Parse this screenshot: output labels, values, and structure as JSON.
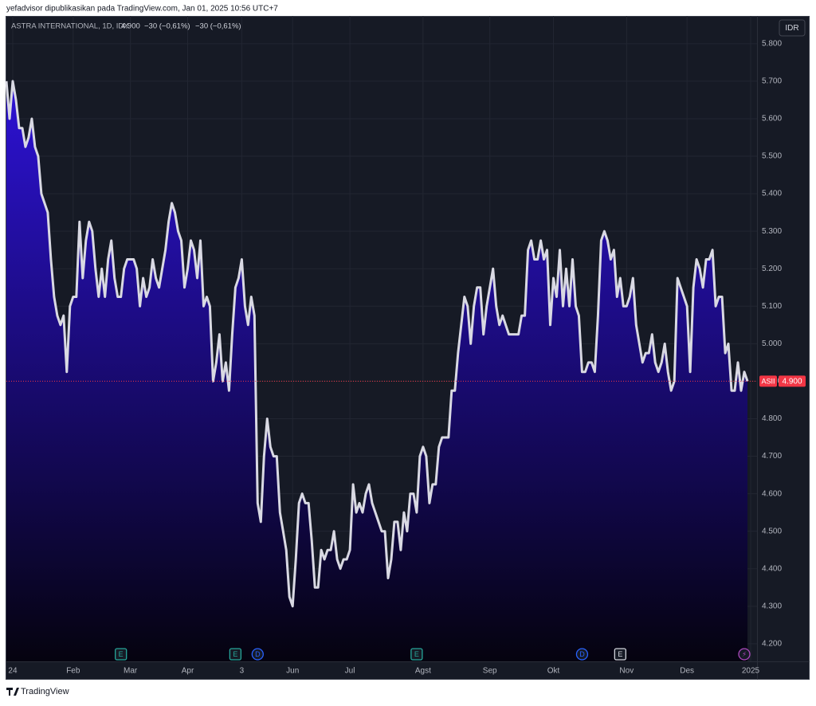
{
  "header": "yefadvisor dipublikasikan pada TradingView.com, Jan 01, 2025 10:56 UTC+7",
  "footer": "TradingView",
  "chart_data": {
    "type": "area",
    "title": "ASTRA INTERNATIONAL, 1D, IDX",
    "ohlc_text": [
      "4.900",
      "−30 (−0,61%)",
      "−30 (−0,61%)"
    ],
    "currency": "IDR",
    "symbol": "ASII",
    "last_price": {
      "value": 4900,
      "label": "4.900"
    },
    "color": "#d9d9e3",
    "fill_top": "#2d12d6",
    "values": [
      5700,
      5600,
      5700,
      5650,
      5575,
      5575,
      5525,
      5550,
      5600,
      5525,
      5500,
      5400,
      5375,
      5350,
      5225,
      5125,
      5075,
      5050,
      5075,
      4925,
      5100,
      5125,
      5125,
      5325,
      5175,
      5275,
      5325,
      5300,
      5200,
      5125,
      5200,
      5125,
      5225,
      5275,
      5175,
      5125,
      5125,
      5200,
      5225,
      5225,
      5225,
      5200,
      5100,
      5175,
      5125,
      5150,
      5225,
      5175,
      5150,
      5200,
      5250,
      5325,
      5375,
      5350,
      5300,
      5275,
      5150,
      5200,
      5275,
      5250,
      5175,
      5275,
      5100,
      5125,
      5100,
      4900,
      4950,
      5025,
      4900,
      4950,
      4875,
      5025,
      5150,
      5175,
      5225,
      5100,
      5050,
      5125,
      5075,
      4575,
      4525,
      4700,
      4800,
      4725,
      4700,
      4700,
      4550,
      4500,
      4450,
      4325,
      4300,
      4425,
      4575,
      4600,
      4575,
      4575,
      4475,
      4350,
      4350,
      4450,
      4425,
      4450,
      4450,
      4500,
      4425,
      4400,
      4425,
      4425,
      4450,
      4625,
      4550,
      4575,
      4550,
      4600,
      4625,
      4575,
      4550,
      4525,
      4500,
      4500,
      4375,
      4425,
      4525,
      4525,
      4450,
      4550,
      4500,
      4600,
      4600,
      4550,
      4700,
      4725,
      4700,
      4575,
      4625,
      4625,
      4725,
      4750,
      4750,
      4750,
      4875,
      4875,
      4975,
      5050,
      5125,
      5100,
      5000,
      5100,
      5150,
      5150,
      5025,
      5100,
      5150,
      5200,
      5100,
      5050,
      5075,
      5050,
      5025,
      5025,
      5025,
      5025,
      5075,
      5075,
      5250,
      5275,
      5225,
      5225,
      5275,
      5225,
      5250,
      5050,
      5175,
      5125,
      5250,
      5100,
      5200,
      5100,
      5225,
      5100,
      5075,
      4925,
      4925,
      4950,
      4950,
      4925,
      5075,
      5275,
      5300,
      5275,
      5225,
      5250,
      5125,
      5175,
      5100,
      5100,
      5125,
      5175,
      5050,
      5000,
      4950,
      4975,
      4975,
      5025,
      4950,
      4925,
      4950,
      5000,
      4925,
      4875,
      4900,
      5175,
      5150,
      5125,
      5100,
      4925,
      5150,
      5225,
      5200,
      5150,
      5225,
      5225,
      5250,
      5100,
      5125,
      5125,
      4975,
      5000,
      4875,
      4875,
      4950,
      4875,
      4925,
      4900
    ],
    "xlim": [
      0,
      232
    ],
    "xticks": [
      {
        "value": 2,
        "label": "24"
      },
      {
        "value": 21,
        "label": "Feb"
      },
      {
        "value": 39,
        "label": "Mar"
      },
      {
        "value": 57,
        "label": "Apr"
      },
      {
        "value": 74,
        "label": "3"
      },
      {
        "value": 90,
        "label": "Jun"
      },
      {
        "value": 108,
        "label": "Jul"
      },
      {
        "value": 131,
        "label": "Agst"
      },
      {
        "value": 152,
        "label": "Sep"
      },
      {
        "value": 172,
        "label": "Okt"
      },
      {
        "value": 195,
        "label": "Nov"
      },
      {
        "value": 214,
        "label": "Des"
      },
      {
        "value": 234,
        "label": "2025"
      }
    ],
    "ylim": [
      4153,
      5874
    ],
    "yticks": [
      {
        "value": 4200,
        "label": "4.200"
      },
      {
        "value": 4300,
        "label": "4.300"
      },
      {
        "value": 4400,
        "label": "4.400"
      },
      {
        "value": 4500,
        "label": "4.500"
      },
      {
        "value": 4600,
        "label": "4.600"
      },
      {
        "value": 4700,
        "label": "4.700"
      },
      {
        "value": 4800,
        "label": "4.800"
      },
      {
        "value": 4900,
        "label": "4.900"
      },
      {
        "value": 5000,
        "label": "5.000"
      },
      {
        "value": 5100,
        "label": "5.100"
      },
      {
        "value": 5200,
        "label": "5.200"
      },
      {
        "value": 5300,
        "label": "5.300"
      },
      {
        "value": 5400,
        "label": "5.400"
      },
      {
        "value": 5500,
        "label": "5.500"
      },
      {
        "value": 5600,
        "label": "5.600"
      },
      {
        "value": 5700,
        "label": "5.700"
      },
      {
        "value": 5800,
        "label": "5.800"
      }
    ],
    "grid": true,
    "events": [
      {
        "x": 36,
        "label": "E"
      },
      {
        "x": 72,
        "label": "E"
      },
      {
        "x": 79,
        "label": "D"
      },
      {
        "x": 129,
        "label": "E"
      },
      {
        "x": 181,
        "label": "D"
      },
      {
        "x": 193,
        "label": "E"
      },
      {
        "x": 232,
        "label": "⚡"
      }
    ]
  }
}
